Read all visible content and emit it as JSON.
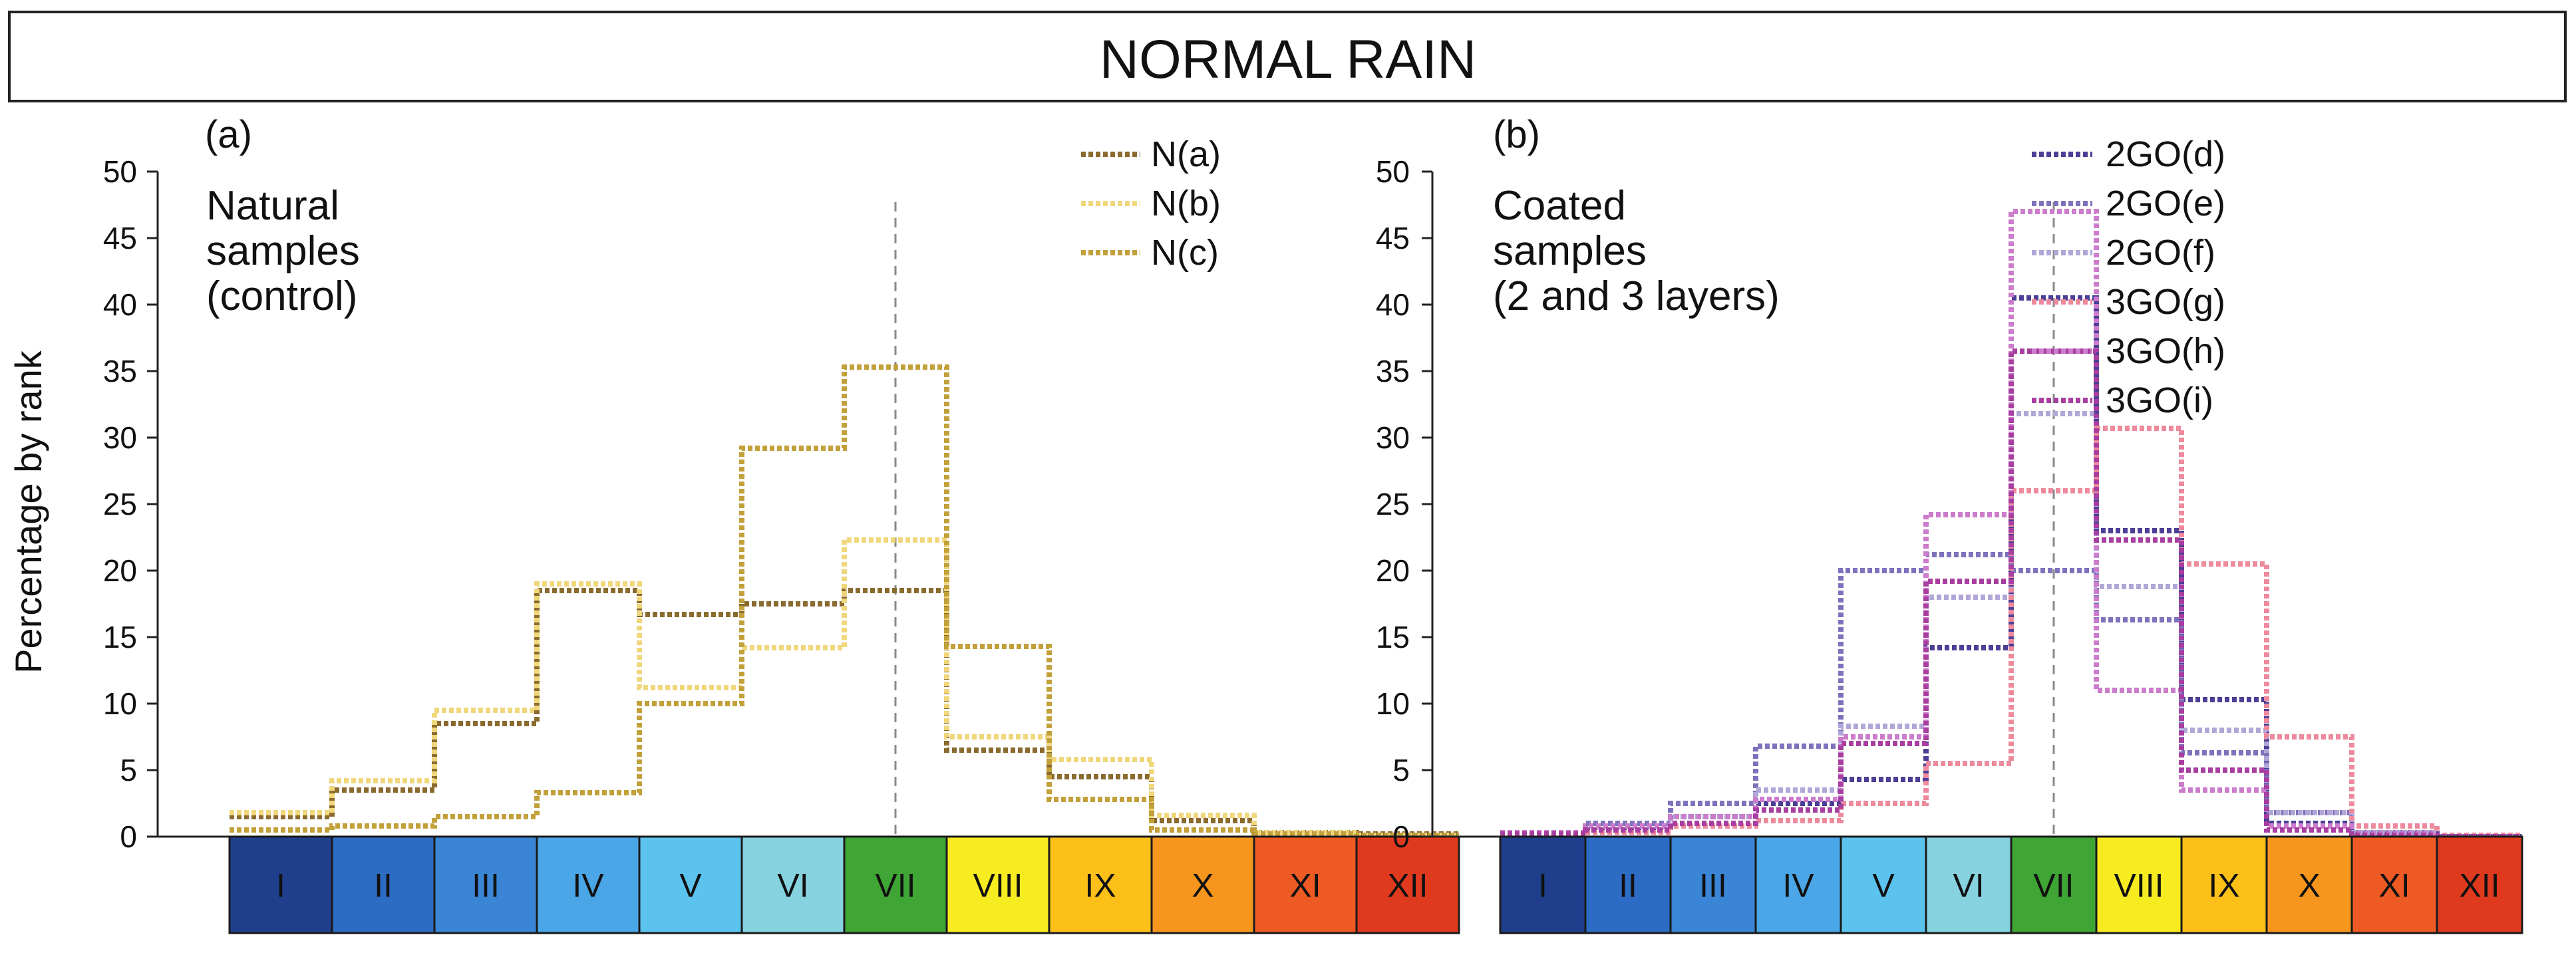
{
  "title": "NORMAL RAIN",
  "chart_data": [
    {
      "type": "step",
      "panel_label": "(a)",
      "annotation": [
        "Natural",
        "samples",
        "(control)"
      ],
      "ylabel": "Percentage by rank",
      "ylim": [
        0,
        50
      ],
      "yticks": [
        0,
        5,
        10,
        15,
        20,
        25,
        30,
        35,
        40,
        45,
        50
      ],
      "categories": [
        "I",
        "II",
        "III",
        "IV",
        "V",
        "VI",
        "VII",
        "VIII",
        "IX",
        "X",
        "XI",
        "XII"
      ],
      "category_colors": [
        "#1f3f8c",
        "#2d6cc4",
        "#3a85d6",
        "#4aa6e6",
        "#5cc3ee",
        "#86d2df",
        "#3fa535",
        "#f6ec20",
        "#fcc019",
        "#f7961d",
        "#ee5a24",
        "#e03a1e"
      ],
      "reference_category": "VII",
      "series": [
        {
          "name": "N(a)",
          "color": "#8a6a2e",
          "values": [
            1.5,
            3.5,
            8.5,
            18.5,
            16.7,
            17.5,
            18.5,
            6.5,
            4.5,
            1.2,
            0.3,
            0.2
          ]
        },
        {
          "name": "N(b)",
          "color": "#f0d77c",
          "values": [
            1.8,
            4.2,
            9.5,
            19.0,
            11.2,
            14.2,
            22.3,
            7.5,
            5.8,
            1.6,
            0.3,
            0.1
          ]
        },
        {
          "name": "N(c)",
          "color": "#c2a03a",
          "values": [
            0.5,
            0.8,
            1.5,
            3.3,
            10.0,
            29.2,
            35.3,
            14.3,
            2.8,
            0.5,
            0.2,
            0.1
          ]
        }
      ]
    },
    {
      "type": "step",
      "panel_label": "(b)",
      "annotation": [
        "Coated",
        "samples",
        "(2 and 3 layers)"
      ],
      "ylabel": "",
      "ylim": [
        0,
        50
      ],
      "yticks": [
        0,
        5,
        10,
        15,
        20,
        25,
        30,
        35,
        40,
        45,
        50
      ],
      "categories": [
        "I",
        "II",
        "III",
        "IV",
        "V",
        "VI",
        "VII",
        "VIII",
        "IX",
        "X",
        "XI",
        "XII"
      ],
      "category_colors": [
        "#1f3f8c",
        "#2d6cc4",
        "#3a85d6",
        "#4aa6e6",
        "#5cc3ee",
        "#86d2df",
        "#3fa535",
        "#f6ec20",
        "#fcc019",
        "#f7961d",
        "#ee5a24",
        "#e03a1e"
      ],
      "reference_category": "VII",
      "series": [
        {
          "name": "2GO(d)",
          "color": "#4b3f96",
          "values": [
            0.3,
            0.5,
            1.5,
            2.5,
            4.3,
            14.2,
            40.5,
            23.0,
            10.3,
            1.0,
            0.2,
            0.0
          ]
        },
        {
          "name": "2GO(e)",
          "color": "#7f72bd",
          "values": [
            0.3,
            1.0,
            2.5,
            6.8,
            20.0,
            21.2,
            20.0,
            16.3,
            6.3,
            1.8,
            0.3,
            0.0
          ]
        },
        {
          "name": "2GO(f)",
          "color": "#b2a6d8",
          "values": [
            0.2,
            0.5,
            1.5,
            3.5,
            8.3,
            18.0,
            31.8,
            18.8,
            8.0,
            1.8,
            0.3,
            0.0
          ]
        },
        {
          "name": "3GO(g)",
          "color": "#ee8a9e",
          "values": [
            0.1,
            0.3,
            0.8,
            1.2,
            2.5,
            5.5,
            26.0,
            30.7,
            20.5,
            7.5,
            0.8,
            0.1
          ]
        },
        {
          "name": "3GO(h)",
          "color": "#cc7ccc",
          "values": [
            0.3,
            0.8,
            1.5,
            2.8,
            7.5,
            24.2,
            47.0,
            11.0,
            3.5,
            0.8,
            0.2,
            0.0
          ]
        },
        {
          "name": "3GO(i)",
          "color": "#a83ea0",
          "values": [
            0.2,
            0.5,
            1.0,
            2.0,
            7.0,
            19.2,
            36.5,
            22.3,
            5.0,
            0.5,
            0.1,
            0.0
          ]
        }
      ]
    }
  ]
}
